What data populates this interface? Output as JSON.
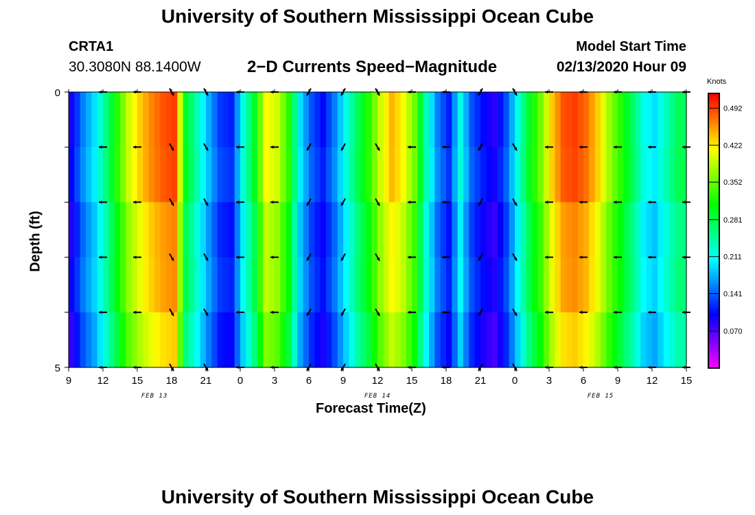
{
  "header": {
    "title": "University of Southern Mississippi Ocean Cube",
    "station": "CRTA1",
    "coords": "30.3080N 88.1400W",
    "subtitle": "2−D Currents Speed−Magnitude",
    "model_label": "Model Start Time",
    "model_time": "02/13/2020 Hour 09"
  },
  "footer": {
    "title": "University of Southern Mississippi Ocean Cube"
  },
  "chart_data": {
    "type": "heatmap",
    "title": "2-D Currents Speed-Magnitude",
    "xlabel": "Forecast Time(Z)",
    "ylabel": "Depth (ft)",
    "x_hours_range": [
      0,
      54
    ],
    "y_range": [
      0,
      5
    ],
    "y_ticks": [
      "0",
      "5"
    ],
    "x_tick_labels": [
      "9",
      "12",
      "15",
      "18",
      "21",
      "0",
      "3",
      "6",
      "9",
      "12",
      "15",
      "18",
      "21",
      "0",
      "3",
      "6",
      "9",
      "12",
      "15"
    ],
    "date_labels": [
      {
        "hour": 7.5,
        "text": "FEB 13"
      },
      {
        "hour": 27,
        "text": "FEB 14"
      },
      {
        "hour": 46.5,
        "text": "FEB 15"
      }
    ],
    "units": "Knots",
    "colorbar_ticks": [
      "0.492",
      "0.422",
      "0.352",
      "0.281",
      "0.211",
      "0.141",
      "0.070"
    ],
    "colorbar_range": [
      0.0,
      0.52
    ],
    "hourly_speed": [
      0.1,
      0.16,
      0.2,
      0.26,
      0.33,
      0.4,
      0.44,
      0.47,
      0.49,
      0.5,
      0.3,
      0.24,
      0.18,
      0.13,
      0.12,
      0.22,
      0.3,
      0.42,
      0.4,
      0.33,
      0.2,
      0.14,
      0.11,
      0.16,
      0.22,
      0.28,
      0.33,
      0.4,
      0.45,
      0.42,
      0.36,
      0.24,
      0.16,
      0.12,
      0.22,
      0.14,
      0.11,
      0.09,
      0.14,
      0.22,
      0.3,
      0.36,
      0.44,
      0.49,
      0.5,
      0.48,
      0.44,
      0.38,
      0.33,
      0.28,
      0.22,
      0.2,
      0.24,
      0.28,
      0.28
    ],
    "arrow_rows": [
      0,
      1,
      2,
      3,
      4,
      5
    ],
    "arrow_hours": [
      3,
      6,
      9,
      12,
      15,
      18,
      21,
      24,
      27,
      30,
      33,
      36,
      39,
      42,
      45,
      48,
      51,
      54
    ],
    "arrow_dirs": [
      180,
      180,
      60,
      60,
      180,
      180,
      120,
      120,
      60,
      180,
      180,
      120,
      60,
      180,
      180,
      180,
      180,
      180
    ]
  }
}
